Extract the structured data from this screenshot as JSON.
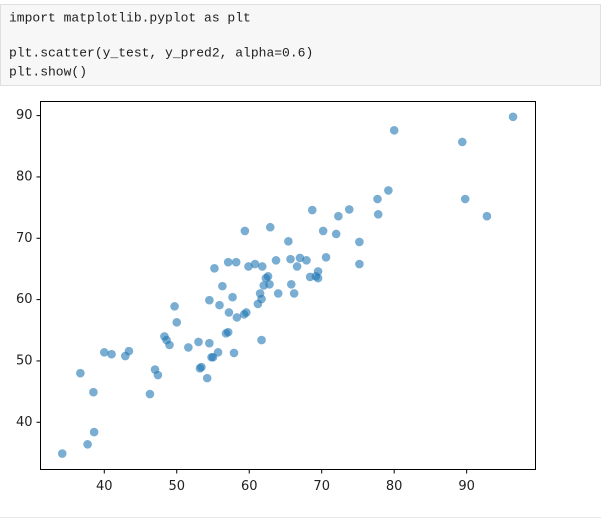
{
  "code": {
    "lines": [
      "import matplotlib.pyplot as plt",
      "plt.scatter(y_test, y_pred2, alpha=0.6)",
      "plt.show()"
    ]
  },
  "chart_data": {
    "type": "scatter",
    "color": "#1f77b4",
    "alpha": 0.6,
    "xlim": [
      31.2,
      99.5
    ],
    "ylim": [
      32.3,
      92.3
    ],
    "xticks": [
      40,
      50,
      60,
      70,
      80,
      90
    ],
    "yticks": [
      40,
      50,
      60,
      70,
      80,
      90
    ],
    "x": [
      34.2,
      37.7,
      38.6,
      38.5,
      36.7,
      40.0,
      41.0,
      42.9,
      43.4,
      46.3,
      47.0,
      47.4,
      48.3,
      48.6,
      49.0,
      49.7,
      50.0,
      51.6,
      53.0,
      53.2,
      53.4,
      54.2,
      54.5,
      54.5,
      54.8,
      55.0,
      55.2,
      55.7,
      55.9,
      56.3,
      56.8,
      57.1,
      57.2,
      57.1,
      57.7,
      57.9,
      58.2,
      58.3,
      59.3,
      59.6,
      59.4,
      59.9,
      60.8,
      61.2,
      61.5,
      61.7,
      61.8,
      61.7,
      62.0,
      62.3,
      62.6,
      62.9,
      62.8,
      63.7,
      64.0,
      65.4,
      65.7,
      65.8,
      66.2,
      66.6,
      67.0,
      67.9,
      68.4,
      68.7,
      69.2,
      69.5,
      69.5,
      70.2,
      70.6,
      72.0,
      72.3,
      73.8,
      75.2,
      75.2,
      77.8,
      77.7,
      79.2,
      80.0,
      89.4,
      89.8,
      92.8,
      96.4
    ],
    "values": [
      34.9,
      36.4,
      38.4,
      44.9,
      48.0,
      51.4,
      51.1,
      50.8,
      51.6,
      44.6,
      48.6,
      47.7,
      54.0,
      53.4,
      52.6,
      58.9,
      56.3,
      52.2,
      53.1,
      48.8,
      49.0,
      47.2,
      52.9,
      59.9,
      50.6,
      50.6,
      65.1,
      51.4,
      59.1,
      62.2,
      54.5,
      54.7,
      57.9,
      66.1,
      60.4,
      51.3,
      66.1,
      57.1,
      57.6,
      57.9,
      71.2,
      65.4,
      65.8,
      59.3,
      61.0,
      60.1,
      65.4,
      53.4,
      62.3,
      63.5,
      63.8,
      71.8,
      62.5,
      66.4,
      61.0,
      69.5,
      66.6,
      62.5,
      61.0,
      65.4,
      66.8,
      66.4,
      63.7,
      74.6,
      63.8,
      64.6,
      63.5,
      71.2,
      66.9,
      70.7,
      73.6,
      74.7,
      69.4,
      65.8,
      73.9,
      76.4,
      77.8,
      87.6,
      85.7,
      76.4,
      73.6,
      89.8
    ]
  }
}
